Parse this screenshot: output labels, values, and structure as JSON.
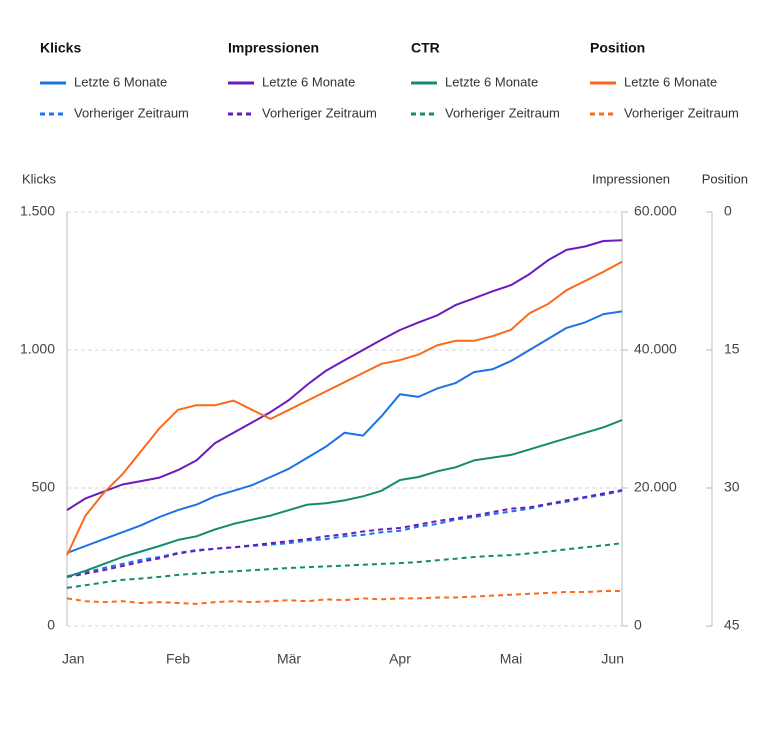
{
  "chart_data": {
    "type": "line",
    "x": [
      0,
      5,
      10,
      15,
      20,
      25,
      30,
      35,
      40,
      45,
      50,
      55,
      60,
      65,
      70,
      75,
      80,
      85,
      90,
      95,
      100,
      105,
      110,
      115,
      120,
      125,
      130,
      135,
      140,
      145,
      150
    ],
    "xlim": [
      0,
      150
    ],
    "xticks": [
      {
        "value": 0,
        "label": "Jan"
      },
      {
        "value": 30,
        "label": "Feb"
      },
      {
        "value": 60,
        "label": "Mär"
      },
      {
        "value": 90,
        "label": "Apr"
      },
      {
        "value": 120,
        "label": "Mai"
      },
      {
        "value": 150,
        "label": "Jun"
      }
    ],
    "ylabel": "Klicks",
    "ylim": [
      0,
      1500
    ],
    "yticks": [
      0,
      500,
      {
        "value": 1000,
        "label": "1.000"
      },
      {
        "value": 1500,
        "label": "1.500"
      }
    ],
    "y2label": "Impressionen",
    "y2lim": [
      0,
      60000
    ],
    "y2ticks": [
      0,
      {
        "value": 20000,
        "label": "20.000"
      },
      {
        "value": 40000,
        "label": "40.000"
      },
      {
        "value": 60000,
        "label": "60.000"
      }
    ],
    "y3label": "Position",
    "y3lim": [
      45,
      0
    ],
    "y3ticks": [
      0,
      15,
      30,
      45
    ],
    "grid": true,
    "groups": [
      {
        "name": "Klicks",
        "series": [
          {
            "name": "Letzte 6 Monate",
            "color": "#1a73e8",
            "dashed": false,
            "axis": "y",
            "values": [
              265,
              290,
              315,
              340,
              365,
              395,
              420,
              440,
              470,
              490,
              510,
              540,
              570,
              610,
              650,
              700,
              690,
              760,
              840,
              830,
              860,
              880,
              920,
              930,
              960,
              1000,
              1040,
              1080,
              1100,
              1130,
              1140
            ]
          },
          {
            "name": "Vorheriger Zeitraum",
            "color": "#1a73e8",
            "dashed": true,
            "axis": "y",
            "values": [
              180,
              195,
              210,
              225,
              240,
              250,
              265,
              275,
              280,
              285,
              290,
              295,
              300,
              310,
              315,
              325,
              330,
              340,
              345,
              360,
              370,
              385,
              395,
              405,
              415,
              425,
              440,
              450,
              465,
              475,
              490
            ]
          }
        ]
      },
      {
        "name": "Impressionen",
        "series": [
          {
            "name": "Letzte 6 Monate",
            "color": "#6a1bbf",
            "dashed": false,
            "axis": "y2",
            "values": [
              16800,
              18500,
              19500,
              20500,
              21000,
              21500,
              22600,
              24000,
              26500,
              28000,
              29500,
              31000,
              32750,
              35000,
              37000,
              38500,
              40000,
              41500,
              42900,
              44000,
              45000,
              46500,
              47500,
              48500,
              49400,
              51000,
              53000,
              54500,
              55000,
              55800,
              55900
            ]
          },
          {
            "name": "Vorheriger Zeitraum",
            "color": "#6a1bbf",
            "dashed": true,
            "axis": "y2",
            "values": [
              7100,
              7600,
              8100,
              8700,
              9300,
              9800,
              10500,
              10900,
              11200,
              11400,
              11700,
              12000,
              12300,
              12600,
              13000,
              13300,
              13700,
              14000,
              14200,
              14700,
              15200,
              15600,
              16000,
              16500,
              17000,
              17200,
              17700,
              18200,
              18700,
              19200,
              19700
            ]
          }
        ]
      },
      {
        "name": "CTR",
        "series": [
          {
            "name": "Letzte 6 Monate",
            "color": "#138a72",
            "dashed": false,
            "axis": "y",
            "values": [
              178,
              200,
              225,
              250,
              270,
              290,
              312,
              325,
              350,
              370,
              385,
              400,
              420,
              440,
              445,
              455,
              470,
              490,
              529,
              540,
              560,
              575,
              600,
              610,
              620,
              640,
              660,
              680,
              700,
              720,
              746
            ]
          },
          {
            "name": "Vorheriger Zeitraum",
            "color": "#138a72",
            "dashed": true,
            "axis": "y",
            "values": [
              138,
              148,
              158,
              167,
              172,
              178,
              185,
              190,
              195,
              198,
              202,
              206,
              210,
              213,
              216,
              219,
              222,
              225,
              228,
              232,
              238,
              244,
              250,
              254,
              257,
              263,
              270,
              278,
              285,
              292,
              300
            ]
          }
        ]
      },
      {
        "name": "Position",
        "series": [
          {
            "name": "Letzte 6 Monate",
            "color": "#fa6a1a",
            "dashed": false,
            "axis": "y3",
            "values": [
              37.3,
              33,
              30.5,
              28.5,
              26,
              23.5,
              21.5,
              21,
              21,
              20.5,
              21.5,
              22.5,
              21.5,
              20.5,
              19.5,
              18.5,
              17.5,
              16.5,
              16.1,
              15.5,
              14.5,
              14,
              14,
              13.5,
              12.8,
              11,
              10,
              8.5,
              7.5,
              6.5,
              5.4
            ]
          },
          {
            "name": "Vorheriger Zeitraum",
            "color": "#fa6a1a",
            "dashed": true,
            "axis": "y3",
            "values": [
              42,
              42.3,
              42.4,
              42.3,
              42.5,
              42.4,
              42.5,
              42.6,
              42.4,
              42.3,
              42.4,
              42.3,
              42.2,
              42.3,
              42.1,
              42.2,
              42.0,
              42.1,
              42.0,
              42.0,
              41.9,
              41.9,
              41.8,
              41.7,
              41.6,
              41.5,
              41.4,
              41.3,
              41.3,
              41.2,
              41.2
            ]
          }
        ]
      }
    ]
  }
}
